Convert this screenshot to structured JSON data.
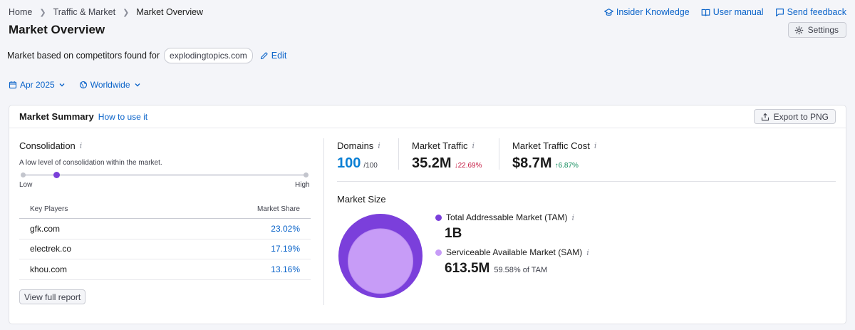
{
  "breadcrumb": {
    "home": "Home",
    "section": "Traffic & Market",
    "current": "Market Overview"
  },
  "page_title": "Market Overview",
  "top_links": {
    "insider": "Insider Knowledge",
    "manual": "User manual",
    "feedback": "Send feedback"
  },
  "settings_label": "Settings",
  "market_line": {
    "text": "Market based on competitors found for",
    "domain": "explodingtopics.com",
    "edit": "Edit"
  },
  "filters": {
    "date": "Apr 2025",
    "region": "Worldwide"
  },
  "summary": {
    "title": "Market Summary",
    "how_to": "How to use it",
    "export": "Export to PNG",
    "consolidation": {
      "title": "Consolidation",
      "description": "A low level of consolidation within the market.",
      "low": "Low",
      "high": "High",
      "level": 0.12
    },
    "key_players": {
      "col_player": "Key Players",
      "col_share": "Market Share",
      "rows": [
        {
          "domain": "gfk.com",
          "share": "23.02%"
        },
        {
          "domain": "electrek.co",
          "share": "17.19%"
        },
        {
          "domain": "khou.com",
          "share": "13.16%"
        }
      ]
    },
    "view_full": "View full report",
    "metrics": {
      "domains": {
        "label": "Domains",
        "value": "100",
        "of": "/100"
      },
      "traffic": {
        "label": "Market Traffic",
        "value": "35.2M",
        "change": "↓22.69%"
      },
      "cost": {
        "label": "Market Traffic Cost",
        "value": "$8.7M",
        "change": "↑6.87%"
      }
    },
    "market_size": {
      "title": "Market Size",
      "tam": {
        "label": "Total Addressable Market (TAM)",
        "value": "1B",
        "color": "#7b3fdb"
      },
      "sam": {
        "label": "Serviceable Available Market (SAM)",
        "value": "613.5M",
        "pct": "59.58% of TAM",
        "color": "#c79cf7"
      }
    }
  },
  "colors": {
    "accent": "#0a63c9",
    "purple": "#7a3fd9",
    "down": "#c4163f",
    "up": "#0d8a5a"
  }
}
